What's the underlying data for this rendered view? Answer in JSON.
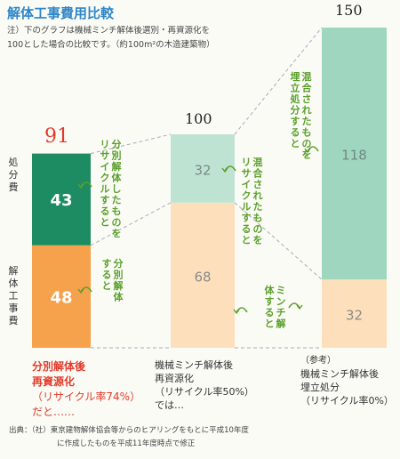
{
  "title": "解体工事費用比較",
  "note_lines": [
    "注）下のグラフは機械ミンチ解体後選別・再資源化を",
    "100とした場合の比較です。（約100m²の木造建築物）"
  ],
  "side_labels": {
    "disposal": "処分費",
    "demolition": "解体工事費"
  },
  "chart_data": {
    "type": "bar",
    "stacked": true,
    "categories": [
      "分別解体後再資源化",
      "機械ミンチ解体後再資源化",
      "機械ミンチ解体後埋立処分"
    ],
    "series": [
      {
        "name": "解体工事費",
        "values": [
          48,
          68,
          32
        ]
      },
      {
        "name": "処分費",
        "values": [
          43,
          32,
          118
        ]
      }
    ],
    "totals": [
      91,
      100,
      150
    ],
    "colors": {
      "bar1_bottom": "#f6a24c",
      "bar1_top": "#1e8c62",
      "bar2_top": "#bfe3d3",
      "bar2_bottom": "#fde0bb",
      "bar3_top": "#9fd6bf",
      "bar3_bottom": "#fde0bb"
    },
    "annotations": [
      "分別解体したものをリサイクルすると",
      "分別解体すると",
      "混合されたものをリサイクルすると",
      "ミンチ解体すると",
      "混合されたものを埋立処分すると"
    ]
  },
  "captions": {
    "bar1": [
      "分別解体後",
      "再資源化",
      "（リサイクル率74%）",
      "だと……"
    ],
    "bar2": [
      "機械ミンチ解体後",
      "再資源化",
      "（リサイクル率50%）",
      "では…"
    ],
    "bar3": [
      "（参考）",
      "機械ミンチ解体後",
      "埋立処分",
      "（リサイクル率0%）"
    ]
  },
  "footer_lines": [
    "出典：（社）東京建物解体協会等からのヒアリングをもとに平成10年度",
    "に作成したものを平成11年度時点で修正"
  ]
}
